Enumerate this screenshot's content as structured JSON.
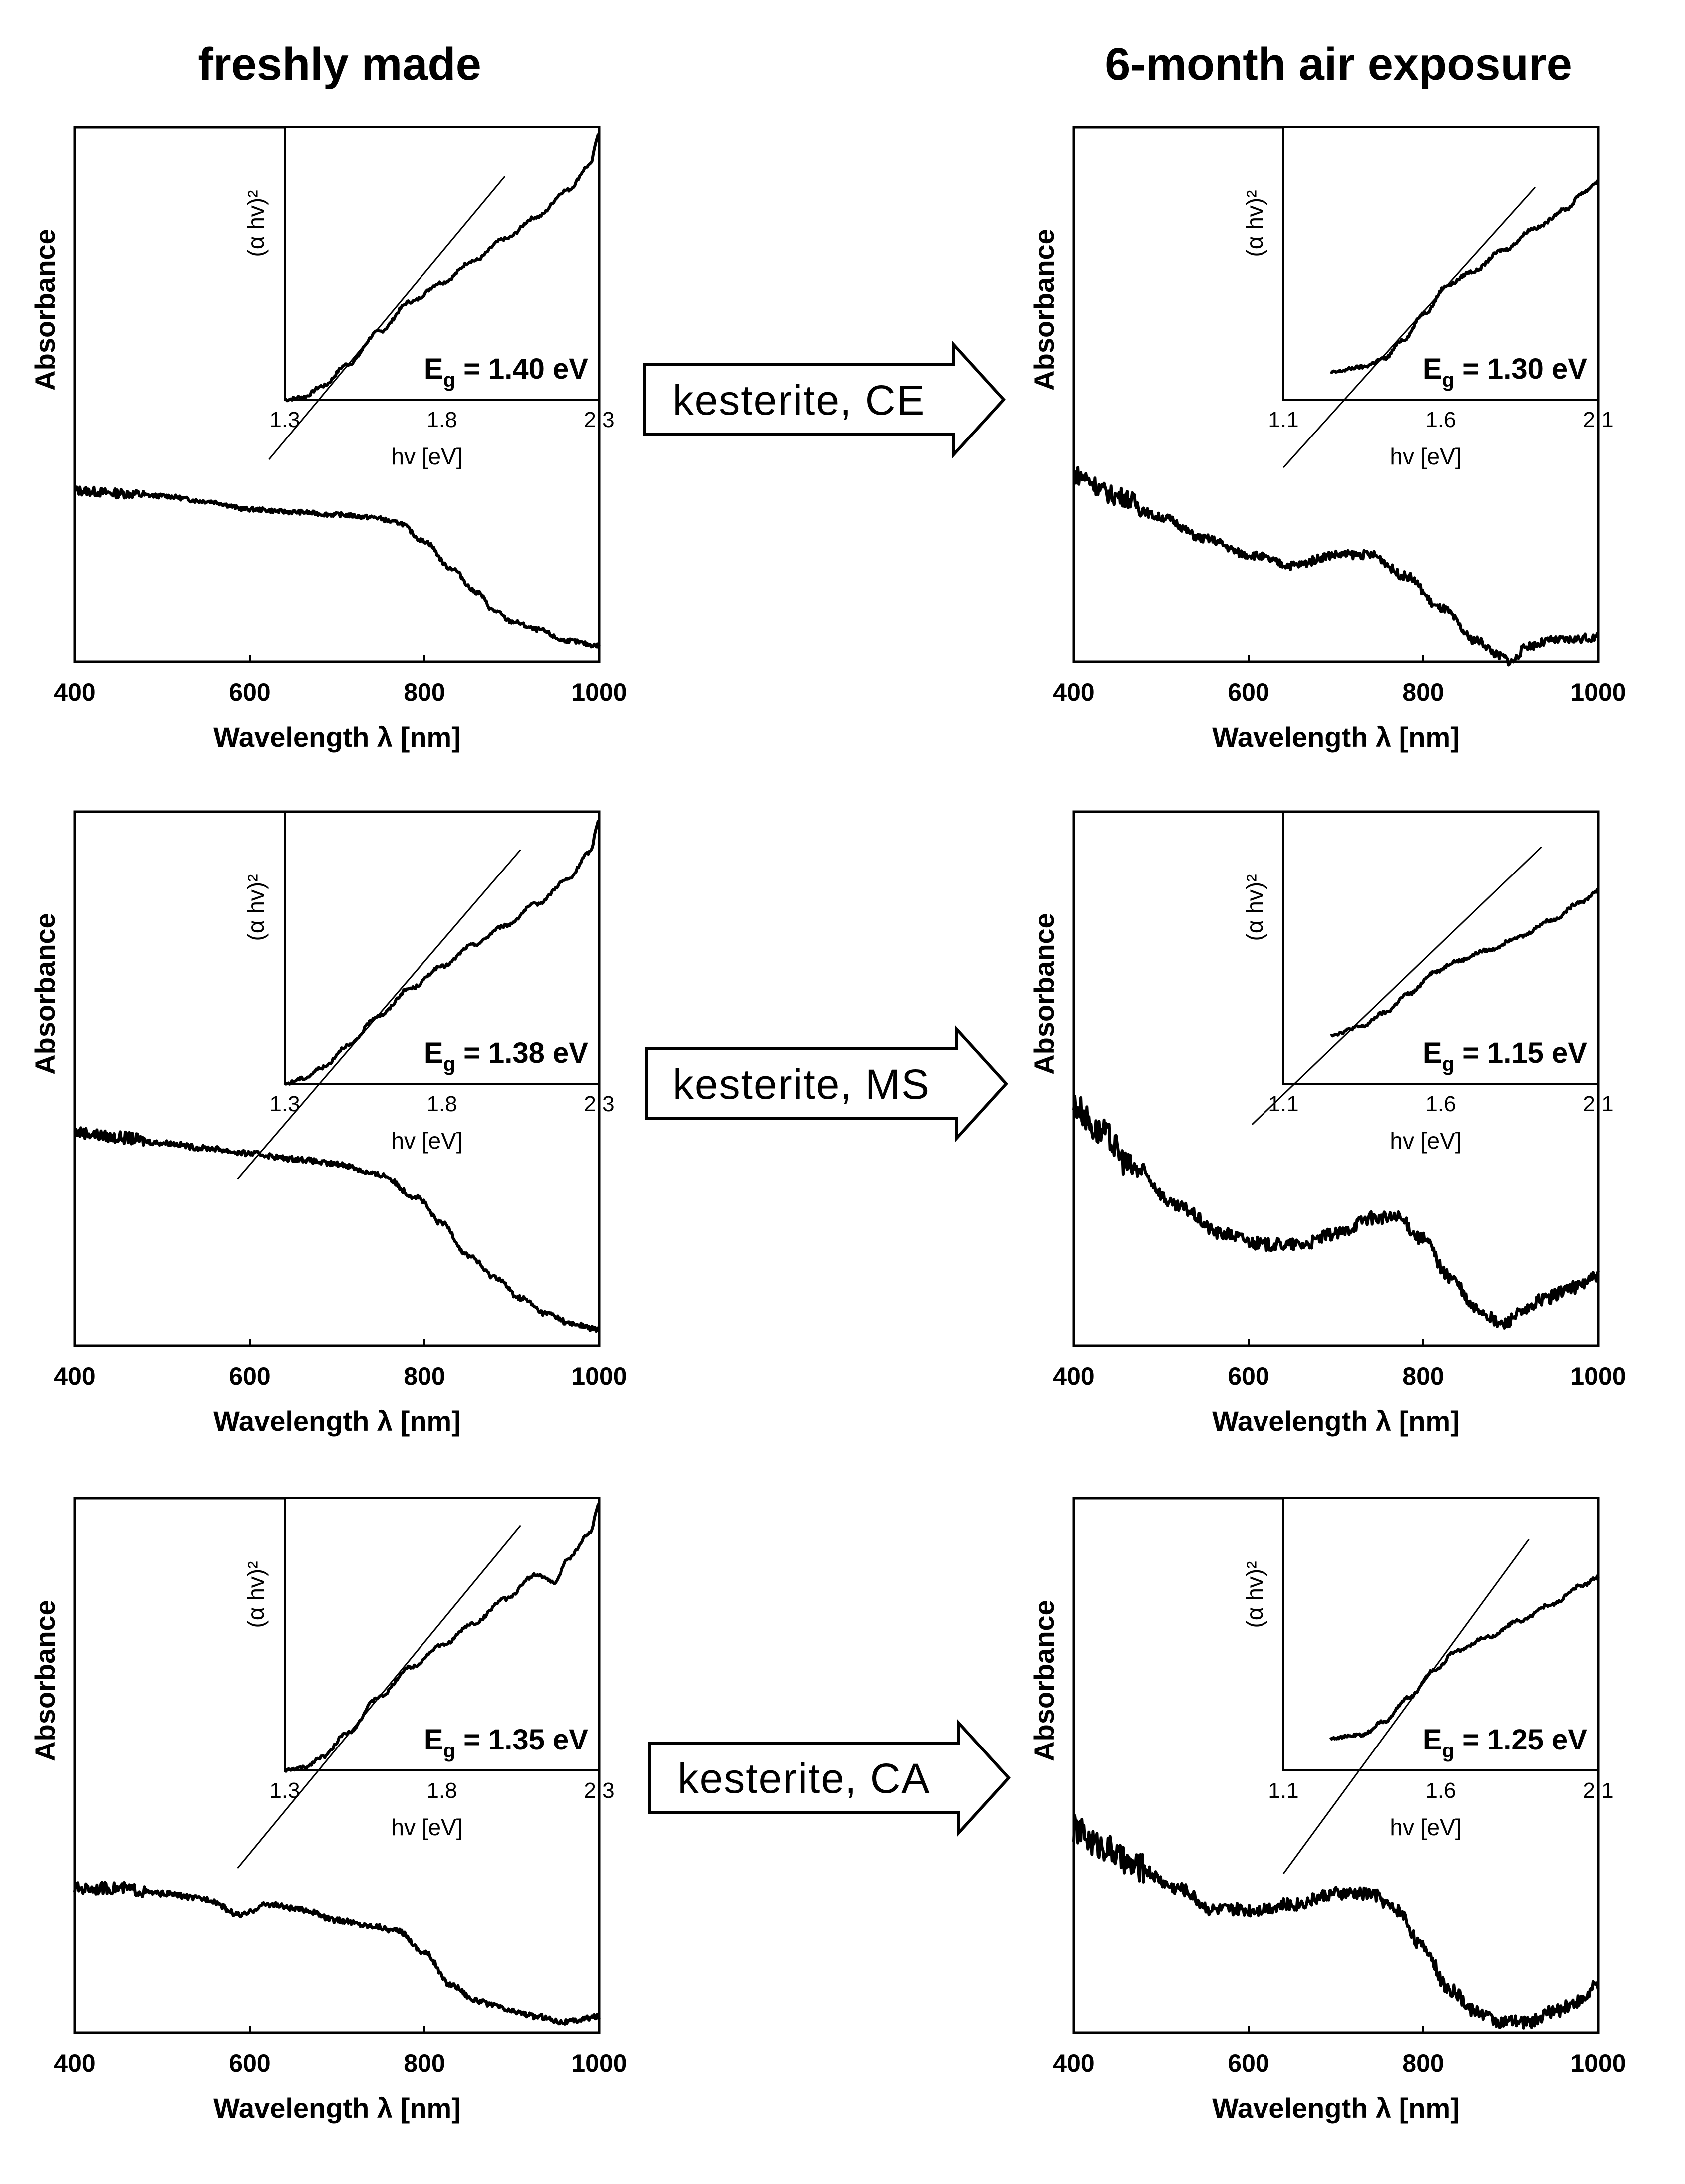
{
  "columns": {
    "left": "freshly made",
    "right": "6-month air exposure"
  },
  "arrows": [
    "kesterite, CE",
    "kesterite, MS",
    "kesterite, CA"
  ],
  "chart_data": [
    {
      "id": "fresh-ce",
      "type": "line",
      "panel": "freshly made, kesterite CE",
      "xlabel": "Wavelength λ [nm]",
      "ylabel": "Absorbance",
      "xlim": [
        400,
        1000
      ],
      "ylim": [
        0,
        1
      ],
      "xticks": [
        "400",
        "600",
        "800",
        "1000"
      ],
      "series": [
        {
          "name": "absorbance",
          "noise": 0.004,
          "x": [
            400,
            450,
            500,
            550,
            600,
            650,
            700,
            740,
            770,
            800,
            830,
            860,
            880,
            900,
            930,
            960,
            1000
          ],
          "y": [
            0.32,
            0.315,
            0.31,
            0.3,
            0.285,
            0.28,
            0.275,
            0.27,
            0.26,
            0.225,
            0.175,
            0.13,
            0.095,
            0.075,
            0.06,
            0.04,
            0.03
          ]
        }
      ],
      "inset": {
        "xlabel": "hv [eV]",
        "ylabel": "(α hv)²",
        "xlim": [
          1.3,
          2.3
        ],
        "ylim": [
          0,
          1
        ],
        "xticks": [
          "1.3",
          "1.8",
          "2.3"
        ],
        "eg_label": "E",
        "eg_sub": "g",
        "eg_value": " = 1.40 eV",
        "curve": {
          "x": [
            1.3,
            1.36,
            1.42,
            1.5,
            1.6,
            1.7,
            1.8,
            1.9,
            2.0,
            2.1,
            2.2,
            2.27,
            2.3
          ],
          "y": [
            0.0,
            0.01,
            0.05,
            0.13,
            0.25,
            0.36,
            0.43,
            0.51,
            0.59,
            0.67,
            0.77,
            0.86,
            0.98
          ]
        },
        "fit": {
          "x1": 1.25,
          "y1": -0.22,
          "x2": 2.0,
          "y2": 0.82
        }
      }
    },
    {
      "id": "aged-ce",
      "type": "line",
      "panel": "6-month air exposure, kesterite CE",
      "xlabel": "Wavelength λ [nm]",
      "ylabel": "Absorbance",
      "xlim": [
        400,
        1000
      ],
      "ylim": [
        0,
        1
      ],
      "xticks": [
        "400",
        "600",
        "800",
        "1000"
      ],
      "series": [
        {
          "name": "absorbance",
          "noise": 0.008,
          "x": [
            400,
            450,
            500,
            550,
            600,
            650,
            700,
            740,
            780,
            820,
            860,
            890,
            900,
            920,
            950,
            1000
          ],
          "y": [
            0.35,
            0.31,
            0.27,
            0.23,
            0.2,
            0.18,
            0.2,
            0.2,
            0.16,
            0.1,
            0.04,
            0.01,
            0.0,
            0.03,
            0.04,
            0.045
          ]
        }
      ],
      "inset": {
        "xlabel": "hv [eV]",
        "ylabel": "(α hv)²",
        "xlim": [
          1.1,
          2.1
        ],
        "ylim": [
          0,
          1
        ],
        "xticks": [
          "1.1",
          "1.6",
          "2.1"
        ],
        "eg_label": "E",
        "eg_sub": "g",
        "eg_value": " = 1.30 eV",
        "curve": {
          "x": [
            1.25,
            1.35,
            1.42,
            1.48,
            1.55,
            1.62,
            1.7,
            1.8,
            1.9,
            2.0,
            2.05,
            2.1
          ],
          "y": [
            0.1,
            0.12,
            0.15,
            0.22,
            0.32,
            0.42,
            0.47,
            0.55,
            0.63,
            0.7,
            0.76,
            0.8
          ]
        },
        "fit": {
          "x1": 1.1,
          "y1": -0.25,
          "x2": 1.9,
          "y2": 0.78
        }
      }
    },
    {
      "id": "fresh-ms",
      "type": "line",
      "panel": "freshly made, kesterite MS",
      "xlabel": "Wavelength λ [nm]",
      "ylabel": "Absorbance",
      "xlim": [
        400,
        1000
      ],
      "ylim": [
        0,
        1
      ],
      "xticks": [
        "400",
        "600",
        "800",
        "1000"
      ],
      "series": [
        {
          "name": "absorbance",
          "noise": 0.005,
          "x": [
            400,
            450,
            500,
            550,
            600,
            650,
            700,
            750,
            790,
            820,
            850,
            880,
            910,
            940,
            970,
            1000
          ],
          "y": [
            0.4,
            0.39,
            0.38,
            0.37,
            0.36,
            0.35,
            0.34,
            0.32,
            0.28,
            0.23,
            0.17,
            0.13,
            0.09,
            0.06,
            0.04,
            0.03
          ]
        }
      ],
      "inset": {
        "xlabel": "hv [eV]",
        "ylabel": "(α hv)²",
        "xlim": [
          1.3,
          2.3
        ],
        "ylim": [
          0,
          1
        ],
        "xticks": [
          "1.3",
          "1.8",
          "2.3"
        ],
        "eg_label": "E",
        "eg_sub": "g",
        "eg_value": " = 1.38 eV",
        "curve": {
          "x": [
            1.3,
            1.36,
            1.42,
            1.5,
            1.6,
            1.7,
            1.8,
            1.9,
            2.0,
            2.1,
            2.2,
            2.27,
            2.3
          ],
          "y": [
            0.0,
            0.02,
            0.06,
            0.14,
            0.25,
            0.35,
            0.43,
            0.51,
            0.58,
            0.66,
            0.75,
            0.85,
            0.97
          ]
        },
        "fit": {
          "x1": 1.15,
          "y1": -0.35,
          "x2": 2.05,
          "y2": 0.86
        }
      }
    },
    {
      "id": "aged-ms",
      "type": "line",
      "panel": "6-month air exposure, kesterite MS",
      "xlabel": "Wavelength λ [nm]",
      "ylabel": "Absorbance",
      "xlim": [
        400,
        1000
      ],
      "ylim": [
        0,
        1
      ],
      "xticks": [
        "400",
        "600",
        "800",
        "1000"
      ],
      "series": [
        {
          "name": "absorbance",
          "noise": 0.012,
          "x": [
            400,
            430,
            470,
            520,
            570,
            620,
            660,
            700,
            740,
            770,
            800,
            830,
            860,
            890,
            910,
            940,
            970,
            1000
          ],
          "y": [
            0.45,
            0.4,
            0.33,
            0.26,
            0.21,
            0.19,
            0.19,
            0.21,
            0.24,
            0.24,
            0.2,
            0.13,
            0.07,
            0.04,
            0.06,
            0.09,
            0.11,
            0.13
          ]
        }
      ],
      "inset": {
        "xlabel": "hv [eV]",
        "ylabel": "(α hv)²",
        "xlim": [
          1.1,
          2.1
        ],
        "ylim": [
          0,
          1
        ],
        "xticks": [
          "1.1",
          "1.6",
          "2.1"
        ],
        "eg_label": "E",
        "eg_sub": "g",
        "eg_value": " = 1.15 eV",
        "curve": {
          "x": [
            1.25,
            1.35,
            1.42,
            1.5,
            1.58,
            1.65,
            1.75,
            1.85,
            1.95,
            2.05,
            2.1
          ],
          "y": [
            0.18,
            0.21,
            0.26,
            0.33,
            0.41,
            0.45,
            0.49,
            0.54,
            0.6,
            0.67,
            0.71
          ]
        },
        "fit": {
          "x1": 1.0,
          "y1": -0.15,
          "x2": 1.92,
          "y2": 0.87
        }
      }
    },
    {
      "id": "fresh-ca",
      "type": "line",
      "panel": "freshly made, kesterite CA",
      "xlabel": "Wavelength λ [nm]",
      "ylabel": "Absorbance",
      "xlim": [
        400,
        1000
      ],
      "ylim": [
        0,
        1
      ],
      "xticks": [
        "400",
        "600",
        "800",
        "1000"
      ],
      "series": [
        {
          "name": "absorbance",
          "noise": 0.005,
          "x": [
            400,
            450,
            500,
            550,
            590,
            620,
            660,
            700,
            740,
            770,
            800,
            830,
            860,
            880,
            900,
            930,
            960,
            1000
          ],
          "y": [
            0.27,
            0.27,
            0.26,
            0.25,
            0.22,
            0.24,
            0.23,
            0.21,
            0.2,
            0.19,
            0.15,
            0.09,
            0.06,
            0.05,
            0.04,
            0.03,
            0.02,
            0.03
          ]
        }
      ],
      "inset": {
        "xlabel": "hv [eV]",
        "ylabel": "(α hv)²",
        "xlim": [
          1.3,
          2.3
        ],
        "ylim": [
          0,
          1
        ],
        "xticks": [
          "1.3",
          "1.8",
          "2.3"
        ],
        "eg_label": "E",
        "eg_sub": "g",
        "eg_value": " = 1.35 eV",
        "curve": {
          "x": [
            1.3,
            1.36,
            1.42,
            1.5,
            1.6,
            1.7,
            1.8,
            1.9,
            2.0,
            2.1,
            2.16,
            2.2,
            2.27,
            2.3
          ],
          "y": [
            0.0,
            0.01,
            0.05,
            0.14,
            0.27,
            0.38,
            0.46,
            0.54,
            0.63,
            0.72,
            0.69,
            0.78,
            0.87,
            0.98
          ]
        },
        "fit": {
          "x1": 1.15,
          "y1": -0.36,
          "x2": 2.05,
          "y2": 0.9
        }
      }
    },
    {
      "id": "aged-ca",
      "type": "line",
      "panel": "6-month air exposure, kesterite CA",
      "xlabel": "Wavelength λ [nm]",
      "ylabel": "Absorbance",
      "xlim": [
        400,
        1000
      ],
      "ylim": [
        0,
        1
      ],
      "xticks": [
        "400",
        "600",
        "800",
        "1000"
      ],
      "series": [
        {
          "name": "absorbance",
          "noise": 0.012,
          "x": [
            400,
            430,
            470,
            520,
            560,
            600,
            650,
            700,
            740,
            770,
            800,
            830,
            860,
            890,
            920,
            950,
            980,
            1000
          ],
          "y": [
            0.38,
            0.35,
            0.31,
            0.27,
            0.23,
            0.23,
            0.24,
            0.26,
            0.26,
            0.23,
            0.16,
            0.08,
            0.04,
            0.02,
            0.02,
            0.04,
            0.06,
            0.09
          ]
        }
      ],
      "inset": {
        "xlabel": "hv [eV]",
        "ylabel": "(α hv)²",
        "xlim": [
          1.1,
          2.1
        ],
        "ylim": [
          0,
          1
        ],
        "xticks": [
          "1.1",
          "1.6",
          "2.1"
        ],
        "eg_label": "E",
        "eg_sub": "g",
        "eg_value": " = 1.25 eV",
        "curve": {
          "x": [
            1.25,
            1.35,
            1.42,
            1.5,
            1.58,
            1.65,
            1.75,
            1.85,
            1.95,
            2.05,
            2.1
          ],
          "y": [
            0.12,
            0.13,
            0.18,
            0.27,
            0.37,
            0.44,
            0.49,
            0.55,
            0.61,
            0.68,
            0.71
          ]
        },
        "fit": {
          "x1": 1.1,
          "y1": -0.38,
          "x2": 1.88,
          "y2": 0.85
        }
      }
    }
  ]
}
